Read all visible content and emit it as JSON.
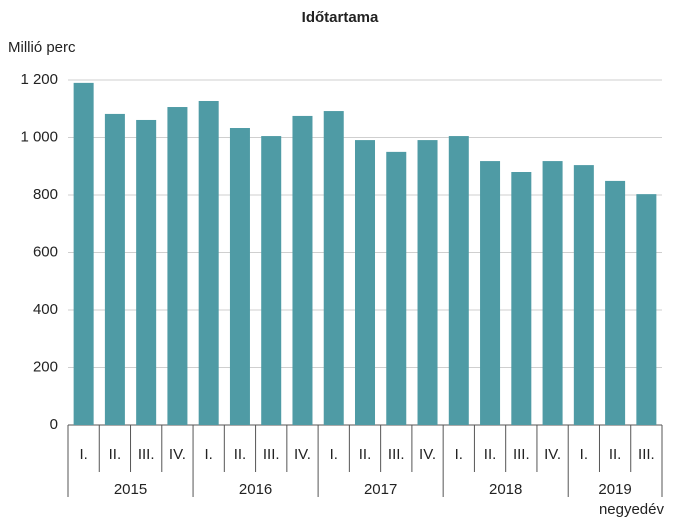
{
  "chart_data": {
    "type": "bar",
    "title": "Időtartama",
    "y_label": "Millió perc",
    "x_label": "negyedév",
    "color": "#4f9ba5",
    "grid": true,
    "ylim": [
      0,
      1200
    ],
    "yticks": [
      0,
      200,
      400,
      600,
      800,
      {
        "value": 1000,
        "label": "1 000"
      },
      {
        "value": 1200,
        "label": "1 200"
      }
    ],
    "groups": [
      {
        "name": "2015",
        "categories": [
          "I.",
          "II.",
          "III.",
          "IV."
        ],
        "values": [
          1190,
          1082,
          1061,
          1106
        ]
      },
      {
        "name": "2016",
        "categories": [
          "I.",
          "II.",
          "III.",
          "IV."
        ],
        "values": [
          1127,
          1033,
          1005,
          1075
        ]
      },
      {
        "name": "2017",
        "categories": [
          "I.",
          "II.",
          "III.",
          "IV."
        ],
        "values": [
          1092,
          991,
          950,
          991
        ]
      },
      {
        "name": "2018",
        "categories": [
          "I.",
          "II.",
          "III.",
          "IV."
        ],
        "values": [
          1005,
          918,
          880,
          918
        ]
      },
      {
        "name": "2019",
        "categories": [
          "I.",
          "II.",
          "III."
        ],
        "values": [
          904,
          849,
          803
        ]
      }
    ]
  }
}
